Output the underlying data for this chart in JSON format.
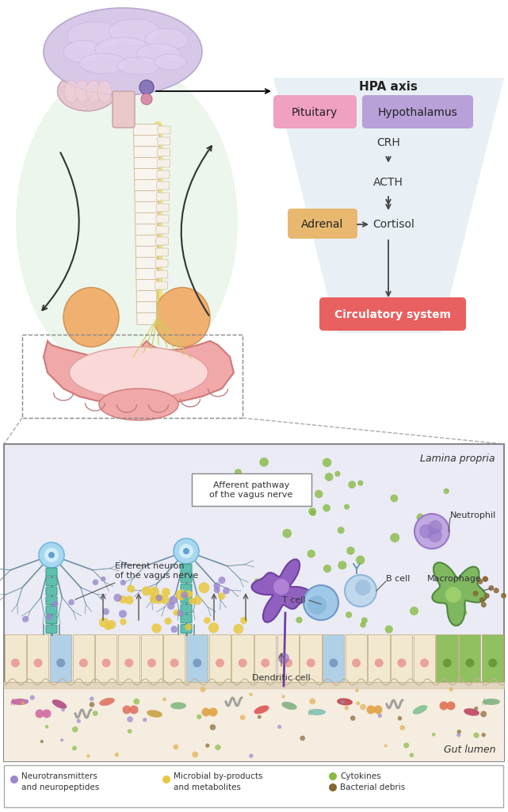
{
  "bg_color": "#ffffff",
  "hpa_title": "HPA axis",
  "pituitary_label": "Pituitary",
  "pituitary_color": "#f0a0c0",
  "hypothalamus_label": "Hypothalamus",
  "hypothalamus_color": "#b8a0d8",
  "crh_label": "CRH",
  "acth_label": "ACTH",
  "adrenal_label": "Adrenal",
  "adrenal_color": "#e8b870",
  "cortisol_label": "Cortisol",
  "circ_label": "Circulatory system",
  "circ_color": "#e86060",
  "lamina_label": "Lamina propria",
  "gut_label": "Gut lumen",
  "efferent_label": "Efferent neuron\nof the vagus nerve",
  "afferent_label": "Afferent pathway\nof the vagus nerve",
  "tcell_label": "T cell",
  "bcell_label": "B cell",
  "neutrophil_label": "Neutrophil",
  "macrophage_label": "Macrophage",
  "dendritic_label": "Dendritic cell",
  "legend_items": [
    {
      "color": "#9988cc",
      "label": "Neurotransmitters\nand neuropeptides"
    },
    {
      "color": "#e8c840",
      "label": "Microbial by-products\nand metabolites"
    },
    {
      "color": "#88bb44",
      "label": "Cytokines"
    },
    {
      "color": "#886633",
      "label": "Bacterial debris"
    }
  ]
}
